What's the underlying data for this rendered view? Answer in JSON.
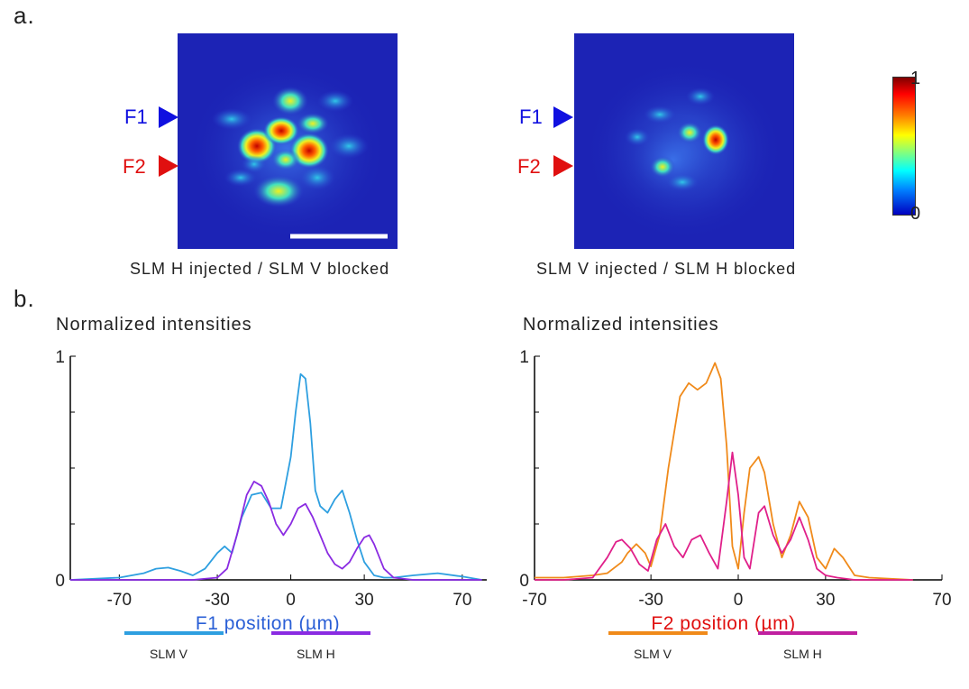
{
  "panel_a": {
    "label": "a.",
    "left_image": {
      "caption": "SLM H injected / SLM V blocked"
    },
    "right_image": {
      "caption": "SLM V injected / SLM H blocked"
    },
    "markers": {
      "f1": "F1",
      "f2": "F2"
    },
    "colorbar": {
      "max_label": "1",
      "min_label": "0"
    },
    "colors": {
      "f1_marker": "#1010e0",
      "f2_marker": "#e01010",
      "background_blue": "#1c23b5"
    }
  },
  "panel_b": {
    "label": "b."
  },
  "chart_data": [
    {
      "type": "line",
      "title": "Normalized intensities",
      "xlabel": "F1 position (µm)",
      "ylabel": "",
      "xlim": [
        -90,
        80
      ],
      "ylim": [
        0,
        1
      ],
      "x_ticks": [
        "-70",
        "-30",
        "0",
        "30",
        "70"
      ],
      "y_ticks": [
        "0",
        "1"
      ],
      "xlabel_color": "#2a5fd6",
      "series": [
        {
          "name": "SLM V",
          "color": "#2e9fe0",
          "x": [
            -90,
            -70,
            -60,
            -55,
            -50,
            -45,
            -40,
            -35,
            -30,
            -27,
            -24,
            -20,
            -16,
            -12,
            -8,
            -4,
            0,
            2,
            4,
            6,
            8,
            10,
            12,
            15,
            18,
            21,
            24,
            27,
            30,
            34,
            38,
            42,
            50,
            60,
            70,
            78
          ],
          "y": [
            0,
            0.01,
            0.03,
            0.05,
            0.055,
            0.04,
            0.02,
            0.05,
            0.12,
            0.15,
            0.12,
            0.28,
            0.38,
            0.39,
            0.32,
            0.32,
            0.55,
            0.75,
            0.92,
            0.9,
            0.7,
            0.4,
            0.33,
            0.3,
            0.36,
            0.4,
            0.3,
            0.18,
            0.08,
            0.02,
            0.01,
            0.01,
            0.02,
            0.03,
            0.015,
            0
          ]
        },
        {
          "name": "SLM H",
          "color": "#8a2be2",
          "x": [
            -90,
            -60,
            -40,
            -30,
            -26,
            -22,
            -18,
            -15,
            -12,
            -9,
            -6,
            -3,
            0,
            3,
            6,
            9,
            12,
            15,
            18,
            21,
            24,
            27,
            30,
            32,
            34,
            38,
            42,
            50,
            78
          ],
          "y": [
            0,
            0,
            0,
            0.01,
            0.05,
            0.2,
            0.38,
            0.44,
            0.42,
            0.35,
            0.25,
            0.2,
            0.25,
            0.32,
            0.34,
            0.28,
            0.2,
            0.12,
            0.07,
            0.05,
            0.08,
            0.14,
            0.19,
            0.2,
            0.16,
            0.05,
            0.01,
            0,
            0
          ]
        }
      ]
    },
    {
      "type": "line",
      "title": "Normalized intensities",
      "xlabel": "F2 position (µm)",
      "ylabel": "",
      "xlim": [
        -70,
        70
      ],
      "ylim": [
        0,
        1
      ],
      "x_ticks": [
        "-70",
        "-30",
        "0",
        "30",
        "70"
      ],
      "y_ticks": [
        "0",
        "1"
      ],
      "xlabel_color": "#e01010",
      "series": [
        {
          "name": "SLM V",
          "color": "#f08a1a",
          "x": [
            -70,
            -60,
            -50,
            -45,
            -40,
            -38,
            -35,
            -32,
            -30,
            -27,
            -24,
            -20,
            -17,
            -14,
            -11,
            -8,
            -6,
            -4,
            -2,
            0,
            2,
            4,
            7,
            9,
            12,
            15,
            18,
            21,
            24,
            27,
            30,
            33,
            36,
            40,
            45,
            60
          ],
          "y": [
            0.01,
            0.01,
            0.02,
            0.03,
            0.08,
            0.12,
            0.16,
            0.12,
            0.06,
            0.2,
            0.5,
            0.82,
            0.88,
            0.85,
            0.88,
            0.97,
            0.9,
            0.6,
            0.15,
            0.05,
            0.3,
            0.5,
            0.55,
            0.48,
            0.25,
            0.1,
            0.2,
            0.35,
            0.28,
            0.1,
            0.05,
            0.14,
            0.1,
            0.02,
            0.01,
            0
          ]
        },
        {
          "name": "SLM H",
          "color": "#e0208a",
          "x": [
            -70,
            -60,
            -50,
            -45,
            -42,
            -40,
            -37,
            -34,
            -31,
            -28,
            -25,
            -22,
            -19,
            -16,
            -13,
            -10,
            -7,
            -4,
            -2,
            0,
            2,
            4,
            7,
            9,
            12,
            15,
            18,
            21,
            24,
            27,
            30,
            34,
            40,
            60
          ],
          "y": [
            0,
            0,
            0.01,
            0.1,
            0.17,
            0.18,
            0.14,
            0.07,
            0.04,
            0.18,
            0.25,
            0.15,
            0.1,
            0.18,
            0.2,
            0.12,
            0.05,
            0.35,
            0.57,
            0.38,
            0.1,
            0.05,
            0.3,
            0.33,
            0.2,
            0.12,
            0.18,
            0.28,
            0.18,
            0.05,
            0.02,
            0.01,
            0,
            0
          ]
        }
      ]
    }
  ]
}
